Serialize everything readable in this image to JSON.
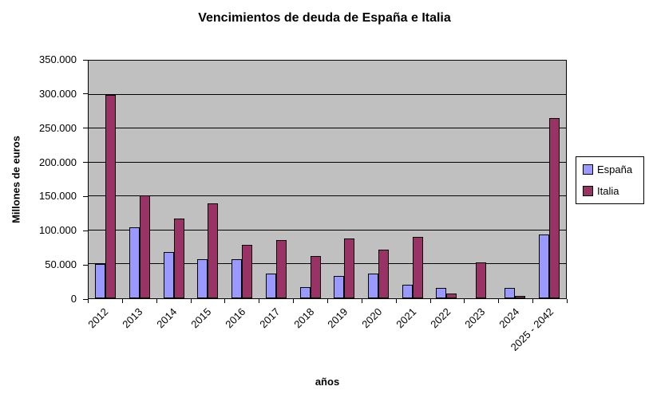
{
  "chart_data": {
    "type": "bar",
    "title": "Vencimientos de deuda de España e Italia",
    "xlabel": "años",
    "ylabel": "Millones de euros",
    "ylim": [
      0,
      350000
    ],
    "ytick_interval": 50000,
    "ytick_labels": [
      "0",
      "50.000",
      "100.000",
      "150.000",
      "200.000",
      "250.000",
      "300.000",
      "350.000"
    ],
    "grid": true,
    "legend_position": "right",
    "plot_bg": "#C0C0C0",
    "grid_color": "#000000",
    "bar_border": "#000000",
    "categories": [
      "2012",
      "2013",
      "2014",
      "2015",
      "2016",
      "2017",
      "2018",
      "2019",
      "2020",
      "2021",
      "2022",
      "2023",
      "2024",
      "2025 - 2042"
    ],
    "series": [
      {
        "name": "España",
        "color": "#9999FF",
        "values": [
          51000,
          105000,
          68000,
          57000,
          57000,
          36000,
          17000,
          33000,
          37000,
          20000,
          15000,
          0,
          15000,
          94000
        ]
      },
      {
        "name": "Italia",
        "color": "#993366",
        "values": [
          299000,
          152000,
          117000,
          140000,
          79000,
          86000,
          62000,
          88000,
          72000,
          90000,
          7000,
          53000,
          3000,
          265000
        ]
      }
    ]
  }
}
